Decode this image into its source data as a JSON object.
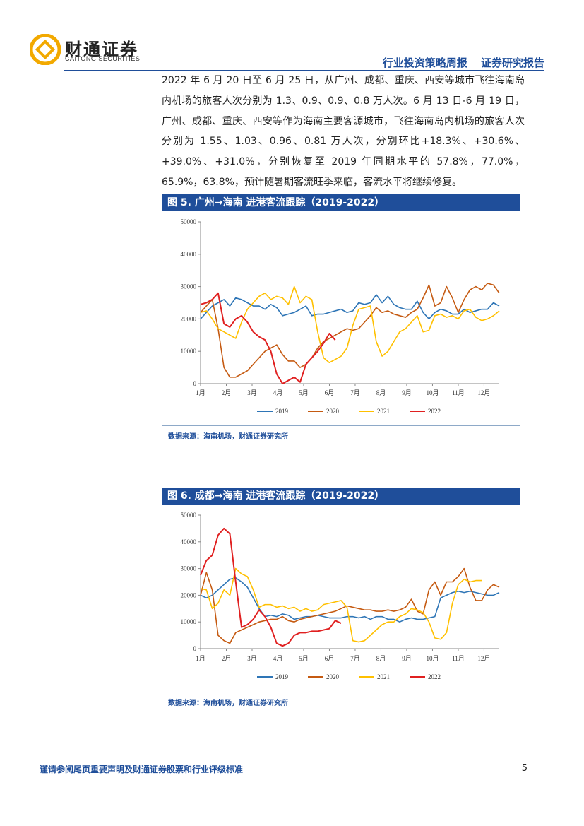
{
  "header": {
    "logo_cn": "财通证券",
    "logo_en": "CAITONG SECURITIES",
    "report_type": "行业投资策略周报",
    "report_category": "证券研究报告"
  },
  "body_text": "2022 年 6 月 20 日至 6 月 25 日，从广州、成都、重庆、西安等城市飞往海南岛内机场的旅客人次分别为 1.3、0.9、0.9、0.8 万人次。6 月 13 日-6 月 19 日，广州、成都、重庆、西安等作为海南主要客源城市，飞往海南岛内机场的旅客人次分别为 1.55、1.03、0.96、0.81 万人次，分别环比+18.3%、+30.6%、+39.0%、+31.0%，分别恢复至 2019 年同期水平的 57.8%，77.0%，65.9%，63.8%，预计随暑期客流旺季来临，客流水平将继续修复。",
  "figures": [
    {
      "title": "图 5. 广州→海南  进港客流跟踪（2019-2022）",
      "source": "数据来源：海南机场，财通证券研究所"
    },
    {
      "title": "图 6. 成都→海南  进港客流跟踪（2019-2022）",
      "source": "数据来源：海南机场，财通证券研究所"
    }
  ],
  "footer": {
    "disclaimer": "谨请参阅尾页重要声明及财通证券股票和行业评级标准",
    "page": "5"
  },
  "colors": {
    "2019": "#2e75b6",
    "2020": "#c55a11",
    "2021": "#ffc000",
    "2022": "#e02020"
  },
  "chart_data": [
    {
      "type": "line",
      "ylim": [
        0,
        50000
      ],
      "yticks": [
        0,
        10000,
        20000,
        30000,
        40000,
        50000
      ],
      "xlim": [
        1,
        52
      ],
      "x_tick_labels": [
        "1月",
        "2月",
        "3月",
        "4月",
        "5月",
        "6月",
        "7月",
        "8月",
        "9月",
        "10月",
        "11月",
        "12月"
      ],
      "x_tick_positions": [
        1,
        5.4,
        9.8,
        14.2,
        18.6,
        23,
        27.4,
        31.8,
        36.2,
        40.6,
        45,
        49.4
      ],
      "legend_position": "bottom",
      "series": [
        {
          "name": "2019",
          "values": [
            20000,
            22000,
            24000,
            25000,
            26000,
            24000,
            26500,
            26000,
            25000,
            24000,
            24000,
            23000,
            24500,
            23500,
            21000,
            21500,
            22000,
            23000,
            24000,
            21000,
            21500,
            21500,
            22000,
            22500,
            23000,
            22000,
            22500,
            25000,
            24500,
            25000,
            27500,
            25000,
            27000,
            24500,
            23500,
            23000,
            23000,
            25500,
            22000,
            20000,
            22000,
            23000,
            22500,
            21500,
            21500,
            23000,
            22000,
            22500,
            23000,
            23000,
            25000,
            24000
          ]
        },
        {
          "name": "2020",
          "values": [
            22000,
            24000,
            26000,
            17000,
            5000,
            2000,
            2000,
            3000,
            4000,
            6000,
            8000,
            10000,
            11000,
            12000,
            9000,
            7000,
            7000,
            5000,
            6000,
            8000,
            11000,
            13000,
            14000,
            15000,
            16000,
            17000,
            16500,
            17000,
            19000,
            21000,
            23500,
            22000,
            22500,
            21500,
            21000,
            20500,
            22000,
            23000,
            26500,
            30500,
            24000,
            25000,
            30000,
            26500,
            22000,
            26000,
            29000,
            30000,
            29000,
            31000,
            30500,
            28000
          ]
        },
        {
          "name": "2021",
          "values": [
            22000,
            22500,
            20000,
            17000,
            16000,
            15000,
            14000,
            19000,
            23000,
            25000,
            27000,
            28000,
            26000,
            27000,
            26500,
            24500,
            30000,
            25000,
            27000,
            26000,
            16000,
            8000,
            6500,
            7500,
            8500,
            11000,
            18000,
            23000,
            23500,
            24000,
            13000,
            8500,
            10000,
            13000,
            16000,
            17000,
            19000,
            21000,
            16000,
            16500,
            21000,
            21500,
            20500,
            21000,
            20000,
            22500,
            23000,
            20500,
            19500,
            20000,
            21000,
            22500
          ]
        },
        {
          "name": "2022",
          "values": [
            24500,
            25000,
            26000,
            28000,
            18500,
            17500,
            20000,
            21000,
            19000,
            16000,
            14500,
            13500,
            10000,
            3000,
            0,
            1000,
            2000,
            500,
            6000,
            8000,
            10000,
            12500,
            15500,
            13500
          ]
        }
      ]
    },
    {
      "type": "line",
      "ylim": [
        0,
        50000
      ],
      "yticks": [
        0,
        10000,
        20000,
        30000,
        40000,
        50000
      ],
      "xlim": [
        1,
        52
      ],
      "x_tick_labels": [
        "1月",
        "2月",
        "3月",
        "4月",
        "5月",
        "6月",
        "7月",
        "8月",
        "9月",
        "10月",
        "11月",
        "12月"
      ],
      "x_tick_positions": [
        1,
        5.4,
        9.8,
        14.2,
        18.6,
        23,
        27.4,
        31.8,
        36.2,
        40.6,
        45,
        49.4
      ],
      "legend_position": "bottom",
      "series": [
        {
          "name": "2019",
          "values": [
            20000,
            19000,
            20000,
            22000,
            24000,
            26000,
            26500,
            25000,
            23000,
            19000,
            15000,
            12000,
            12500,
            12000,
            13000,
            12500,
            11000,
            11500,
            12000,
            12000,
            12500,
            12000,
            11500,
            11500,
            11500,
            12000,
            12000,
            11500,
            12000,
            11000,
            12000,
            12000,
            11000,
            11000,
            10000,
            11000,
            11500,
            11000,
            11000,
            11500,
            12000,
            19000,
            20000,
            21000,
            21500,
            21000,
            21500,
            21000,
            20500,
            20000,
            20000,
            21000
          ]
        },
        {
          "name": "2020",
          "values": [
            20000,
            28500,
            22000,
            5000,
            3000,
            2000,
            6000,
            7000,
            8000,
            9000,
            10000,
            10500,
            11000,
            11000,
            12000,
            10500,
            10000,
            11000,
            11500,
            12000,
            12500,
            13000,
            13500,
            14000,
            15000,
            16000,
            15500,
            15000,
            14500,
            14500,
            14000,
            14000,
            14500,
            14000,
            14500,
            15500,
            18500,
            14000,
            13000,
            22000,
            25000,
            20000,
            25000,
            25000,
            27000,
            30000,
            23000,
            18000,
            18000,
            22000,
            24000,
            23000
          ]
        },
        {
          "name": "2021",
          "values": [
            22500,
            22000,
            15000,
            17000,
            22000,
            20000,
            30000,
            28000,
            27000,
            22000,
            15500,
            16500,
            16500,
            15500,
            16000,
            15000,
            15500,
            14000,
            15000,
            14000,
            14500,
            16500,
            17000,
            17500,
            18000,
            15500,
            3000,
            2500,
            3000,
            5000,
            7000,
            9000,
            10000,
            10000,
            12000,
            13000,
            15000,
            14500,
            13500,
            10000,
            4000,
            3500,
            6000,
            17000,
            24000,
            26000,
            25000,
            25500,
            25500
          ]
        },
        {
          "name": "2022",
          "values": [
            27500,
            33000,
            35000,
            42500,
            45000,
            43000,
            25000,
            8000,
            9000,
            11000,
            14500,
            12000,
            8000,
            2000,
            1000,
            2000,
            5000,
            6000,
            6000,
            6500,
            6500,
            7000,
            7500,
            10500,
            9500
          ]
        }
      ]
    }
  ]
}
